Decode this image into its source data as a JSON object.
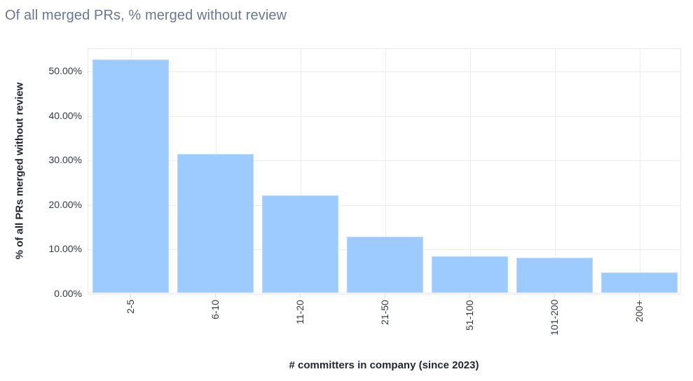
{
  "chart_data": {
    "type": "bar",
    "title": "Of all merged PRs, % merged without review",
    "xlabel": "# committers in company (since 2023)",
    "ylabel": "% of all PRs merged without review",
    "categories": [
      "2-5",
      "6-10",
      "11-20",
      "21-50",
      "51-100",
      "101-200",
      "200+"
    ],
    "values": [
      52.4,
      31.1,
      21.9,
      12.6,
      8.1,
      7.8,
      4.6
    ],
    "value_unit": "%",
    "ylim": [
      0,
      55
    ],
    "yticks": [
      "0.00%",
      "10.00%",
      "20.00%",
      "30.00%",
      "40.00%",
      "50.00%"
    ],
    "ytick_values": [
      0,
      10,
      20,
      30,
      40,
      50
    ],
    "grid": true,
    "legend": null,
    "bar_color": "#9ecbff"
  }
}
